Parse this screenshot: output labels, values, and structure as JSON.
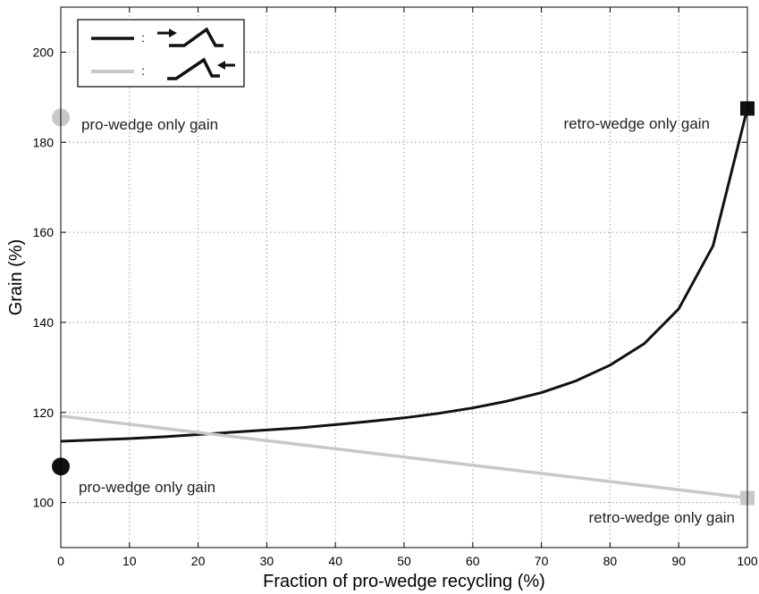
{
  "chart_data": {
    "type": "line",
    "xlabel": "Fraction of pro-wedge recycling (%)",
    "ylabel": "Grain (%)",
    "xlim": [
      0,
      100
    ],
    "ylim": [
      90,
      210
    ],
    "xticks": [
      0,
      10,
      20,
      30,
      40,
      50,
      60,
      70,
      80,
      90,
      100
    ],
    "yticks": [
      100,
      120,
      140,
      160,
      180,
      200
    ],
    "grid": true,
    "legend_position": "top-left",
    "series": [
      {
        "color": "#111111",
        "x": [
          0,
          5,
          10,
          15,
          20,
          25,
          30,
          35,
          40,
          45,
          50,
          55,
          60,
          65,
          70,
          75,
          80,
          85,
          90,
          95,
          100
        ],
        "y": [
          113.6,
          113.9,
          114.2,
          114.6,
          115.1,
          115.6,
          116.1,
          116.6,
          117.3,
          118.0,
          118.8,
          119.8,
          121.0,
          122.5,
          124.4,
          127.0,
          130.5,
          135.3,
          143.0,
          157.0,
          187.5
        ]
      },
      {
        "color": "#c8c8c8",
        "x": [
          0,
          100
        ],
        "y": [
          119.2,
          101.0
        ]
      }
    ],
    "markers": [
      {
        "shape": "circle",
        "color": "#c8c8c8",
        "x": 0,
        "y": 185.5
      },
      {
        "shape": "circle",
        "color": "#111111",
        "x": 0,
        "y": 108.0
      },
      {
        "shape": "square",
        "color": "#111111",
        "x": 100,
        "y": 187.5
      },
      {
        "shape": "square",
        "color": "#c8c8c8",
        "x": 100,
        "y": 101.0
      }
    ],
    "annotations": [
      {
        "id": "pro-gray",
        "text": "pro-wedge only gain"
      },
      {
        "id": "pro-black",
        "text": "pro-wedge only gain"
      },
      {
        "id": "retro-black",
        "text": "retro-wedge only gain"
      },
      {
        "id": "retro-gray",
        "text": "retro-wedge only gain"
      }
    ],
    "legend": [
      {
        "color": "#111111",
        "separator": ":",
        "icon": "wedge-with-arrow-from-left-icon"
      },
      {
        "color": "#c8c8c8",
        "separator": ":",
        "icon": "wedge-with-arrow-from-right-icon"
      }
    ]
  }
}
